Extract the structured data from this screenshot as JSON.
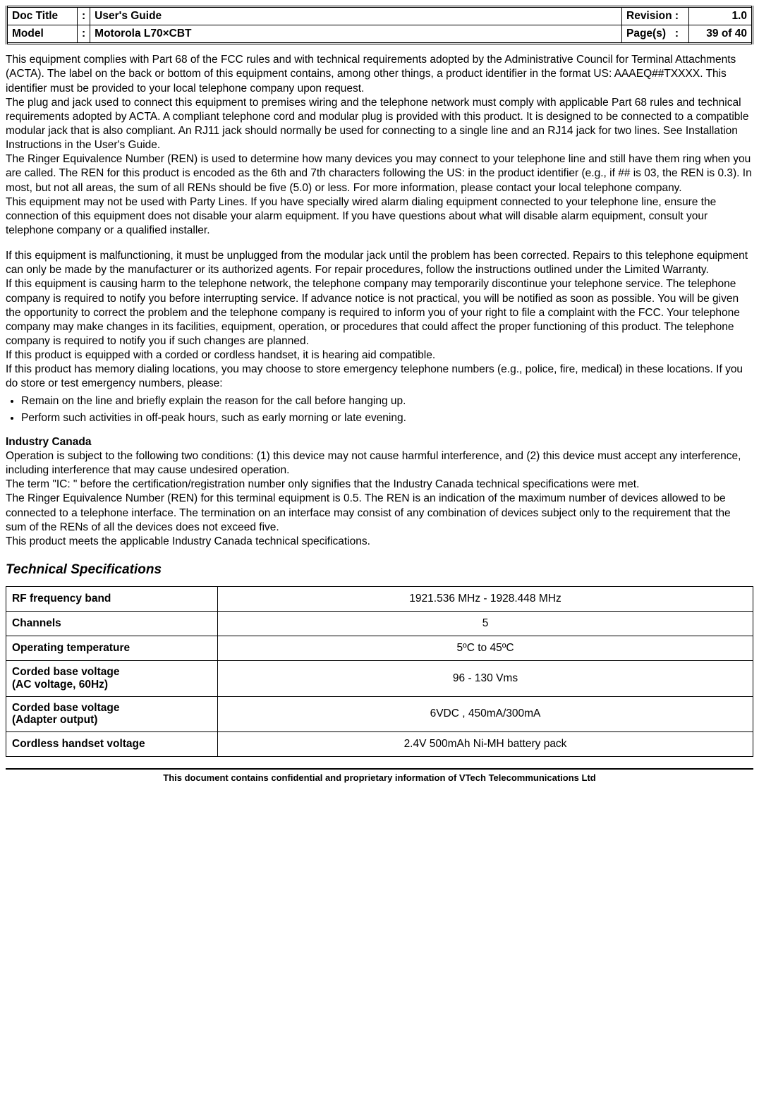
{
  "header": {
    "doc_title_label": "Doc Title",
    "doc_title_value": "User's Guide",
    "model_label": "Model",
    "model_value": "Motorola L70×CBT",
    "revision_label": "Revision",
    "revision_value": "1.0",
    "pages_label": "Page(s)",
    "pages_value": "39 of 40",
    "colon": ":"
  },
  "body": {
    "p1": "This equipment complies with Part 68 of the FCC rules and with technical requirements adopted by the Administrative Council for Terminal Attachments (ACTA). The label on the back or bottom of this equipment contains, among other things, a product identifier in the format US: AAAEQ##TXXXX. This identifier must be provided to your local telephone company upon request.",
    "p2": "The plug and jack used to connect this equipment to premises wiring and the telephone network must comply with applicable Part 68 rules and technical requirements adopted by ACTA. A compliant telephone cord and modular plug is provided with this product. It is designed to be connected to a compatible modular jack that is also compliant. An RJ11 jack should normally be used for connecting to a single line and an RJ14 jack for two lines. See Installation Instructions in the User's Guide.",
    "p3": "The Ringer Equivalence Number (REN) is used to determine how many devices you may connect to your telephone line and still have them ring when you are called. The REN for this product is encoded as the 6th and 7th characters following the US: in the product identifier (e.g., if ## is 03, the REN is 0.3). In most, but not all areas, the sum of all RENs should be five (5.0) or less. For more information, please contact your local telephone company.",
    "p4": "This equipment may not be used with Party Lines. If you have specially wired alarm dialing equipment connected to your telephone line, ensure the connection of this equipment does not disable your alarm equipment. If you have questions about what will disable alarm equipment, consult your telephone company or a qualified installer.",
    "p5": "If this equipment is malfunctioning, it must be unplugged from the modular jack until the problem has been corrected. Repairs to this telephone equipment can only be made by the manufacturer or its authorized agents. For repair procedures, follow the instructions outlined under the Limited Warranty.",
    "p6": "If this equipment is causing harm to the telephone network, the telephone company may temporarily discontinue your telephone service. The telephone company is required to notify you before interrupting service. If advance notice is not practical, you will be notified as soon as possible. You will be given the opportunity to correct the problem and the telephone company is required to inform you of your right to file a complaint with the FCC. Your telephone company may make changes in its facilities, equipment, operation, or procedures that could affect the proper functioning of this product. The telephone company is required to notify you if such changes are planned.",
    "p7": "If this product is equipped with a corded or cordless handset, it is hearing aid compatible.",
    "p8": "If this product has memory dialing locations, you may choose to store emergency telephone numbers (e.g., police, fire, medical) in these locations. If you do store or test emergency numbers, please:",
    "bullets": [
      "Remain on the line and briefly explain the reason for the call before hanging up.",
      "Perform such activities in off-peak hours, such as early morning or late evening."
    ],
    "ic_heading": "Industry Canada",
    "ic_p1": "Operation is subject to the following two conditions: (1) this device may not cause harmful interference, and (2) this device must accept any interference, including interference that may cause undesired operation.",
    "ic_p2": "The term \"IC: \" before the certification/registration number only signifies that the Industry Canada technical specifications were met.",
    "ic_p3": "The Ringer Equivalence Number (REN) for this terminal equipment is 0.5. The REN is an indication of the maximum number of devices allowed to be connected to a telephone interface. The termination on an interface may consist of any combination of devices subject only to the requirement that the sum of the RENs of all the devices does not exceed five.",
    "ic_p4": "This product meets the applicable Industry Canada technical specifications.",
    "tech_heading": "Technical Specifications"
  },
  "spec_table": {
    "rows": [
      {
        "label": "RF frequency band",
        "value": "1921.536 MHz - 1928.448 MHz"
      },
      {
        "label": "Channels",
        "value": "5"
      },
      {
        "label": "Operating temperature",
        "value": "5ºC to 45ºC"
      },
      {
        "label": "Corded base voltage\n(AC voltage, 60Hz)",
        "value": "96 - 130 Vms"
      },
      {
        "label": "Corded base voltage\n(Adapter output)",
        "value": "6VDC , 450mA/300mA"
      },
      {
        "label": "Cordless handset voltage",
        "value": "2.4V 500mAh Ni-MH battery pack"
      }
    ]
  },
  "footer": {
    "text": "This document contains confidential and proprietary information of VTech Telecommunications Ltd"
  }
}
